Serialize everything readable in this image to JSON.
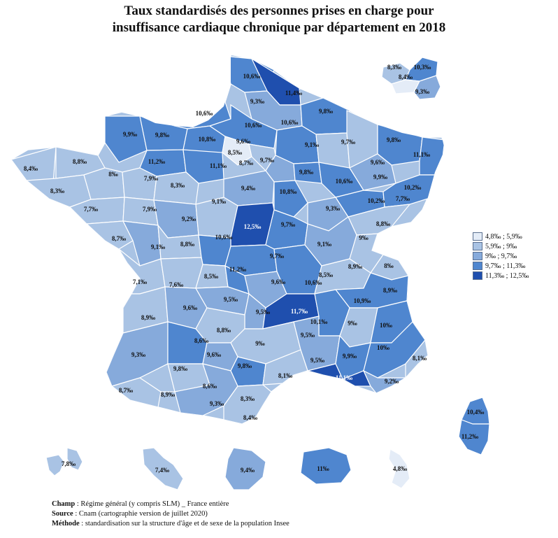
{
  "title_line1": "Taux standardisés des personnes prises en charge pour",
  "title_line2": "insuffisance cardiaque chronique par département en 2018",
  "colors": {
    "c1": "#e4ecf7",
    "c2": "#a9c3e4",
    "c3": "#86aadb",
    "c4": "#4f86cf",
    "c5": "#1f4fae"
  },
  "legend": [
    {
      "label": "4,8‰ ; 5,9‰"
    },
    {
      "label": "5,9‰ ; 9‰"
    },
    {
      "label": "9‰ ; 9,7‰"
    },
    {
      "label": "9,7‰ ; 11,3‰"
    },
    {
      "label": "11,3‰ ; 12,5‰"
    }
  ],
  "labels": {
    "nord1": "10,6‰",
    "nord2": "11,4‰",
    "aisne": "9,3‰",
    "seine_mar": "10,6‰",
    "manche": "9,9‰",
    "calvados": "9,8‰",
    "eure": "10,8‰",
    "oise": "10,6‰",
    "marne": "10,6‰",
    "ardennes": "9,8‰",
    "meuse": "9,1‰",
    "mos": "9,7‰",
    "bas_rhin": "9,8‰",
    "haut_rhin": "11,1‰",
    "idf1": "9,6‰",
    "idf2": "8,5‰",
    "idf3": "8,7‰",
    "finistere": "8,4‰",
    "cotes": "8,8‰",
    "orne": "11,2‰",
    "eure_loir": "11,1‰",
    "seine_marne": "9,7‰",
    "aube": "9,8‰",
    "hte_marne": "10,6‰",
    "vosges": "9,6‰",
    "morbihan": "8,3‰",
    "ille": "8‰",
    "mayenne": "7,9‰",
    "sarthe": "8,3‰",
    "loiret": "9,4‰",
    "yonne": "10,8‰",
    "cote_or": "9,3‰",
    "hte_saone": "9,9‰",
    "terr_belfort": "10,2‰",
    "doubs": "10,2‰",
    "belfort2": "7,7‰",
    "loire_atl": "7,7‰",
    "maine_loire": "7,9‰",
    "indre_loire": "9,2‰",
    "loir_cher": "9,1‰",
    "cher": "12,5‰",
    "nievre": "9,7‰",
    "jura": "8,8‰",
    "vendee": "8,7‰",
    "deux_sevres": "9,1‰",
    "vienne": "8,8‰",
    "indre": "10,6‰",
    "saone_loire": "9,1‰",
    "ain": "9‰",
    "allier": "9,7‰",
    "ch_mar": "7,1‰",
    "charente": "7,6‰",
    "hte_vienne": "8,5‰",
    "creuse": "11,2‰",
    "puy_dome": "9,6‰",
    "loire": "10,6‰",
    "rhone": "8,5‰",
    "isere2": "8,9‰",
    "hte_savoie": "8‰",
    "savoie": "8,9‰",
    "gironde": "8,9‰",
    "dordogne": "9,6‰",
    "correze": "9,5‰",
    "cantal": "9,5‰",
    "hte_loire": "11,7‰",
    "ardeche": "10,1‰",
    "isere": "10,9‰",
    "drome": "9‰",
    "htes_alpes": "10‰",
    "lot": "8,8‰",
    "lot2": "8,6‰",
    "aveyron": "9‰",
    "landes": "9,3‰",
    "lot_gar": "9,8‰",
    "tarn_gar": "9,6‰",
    "tarn": "9,8‰",
    "gard": "9,5‰",
    "vaucluse": "9,9‰",
    "alp_hte_pr": "10‰",
    "alp_mar": "8,1‰",
    "pyr_atl": "8,7‰",
    "htes_pyr": "8,9‰",
    "gers": "8,6‰",
    "hte_garonne": "9,3‰",
    "aude": "8,3‰",
    "herault": "8,1‰",
    "bouches": "11,1‰",
    "var": "9,2‰",
    "ariege": "8,4‰",
    "corse1": "10,4‰",
    "corse2": "11,2‰",
    "paris1": "8,3‰",
    "paris2": "10,3‰",
    "paris3": "8,4‰",
    "paris4": "9,3‰",
    "guadeloupe": "7,8‰",
    "martinique": "7,4‰",
    "guyane": "9,4‰",
    "reunion": "11‰",
    "mayotte": "4,8‰"
  },
  "notes": {
    "champ_key": "Champ",
    "champ_val": ": Régime général (y compris SLM) _ France entière",
    "source_key": "Source",
    "source_val": ": Cnam (cartographie version de juillet 2020)",
    "methode_key": "Méthode",
    "methode_val": ": standardisation sur la structure d'âge et de sexe de la population Insee"
  }
}
